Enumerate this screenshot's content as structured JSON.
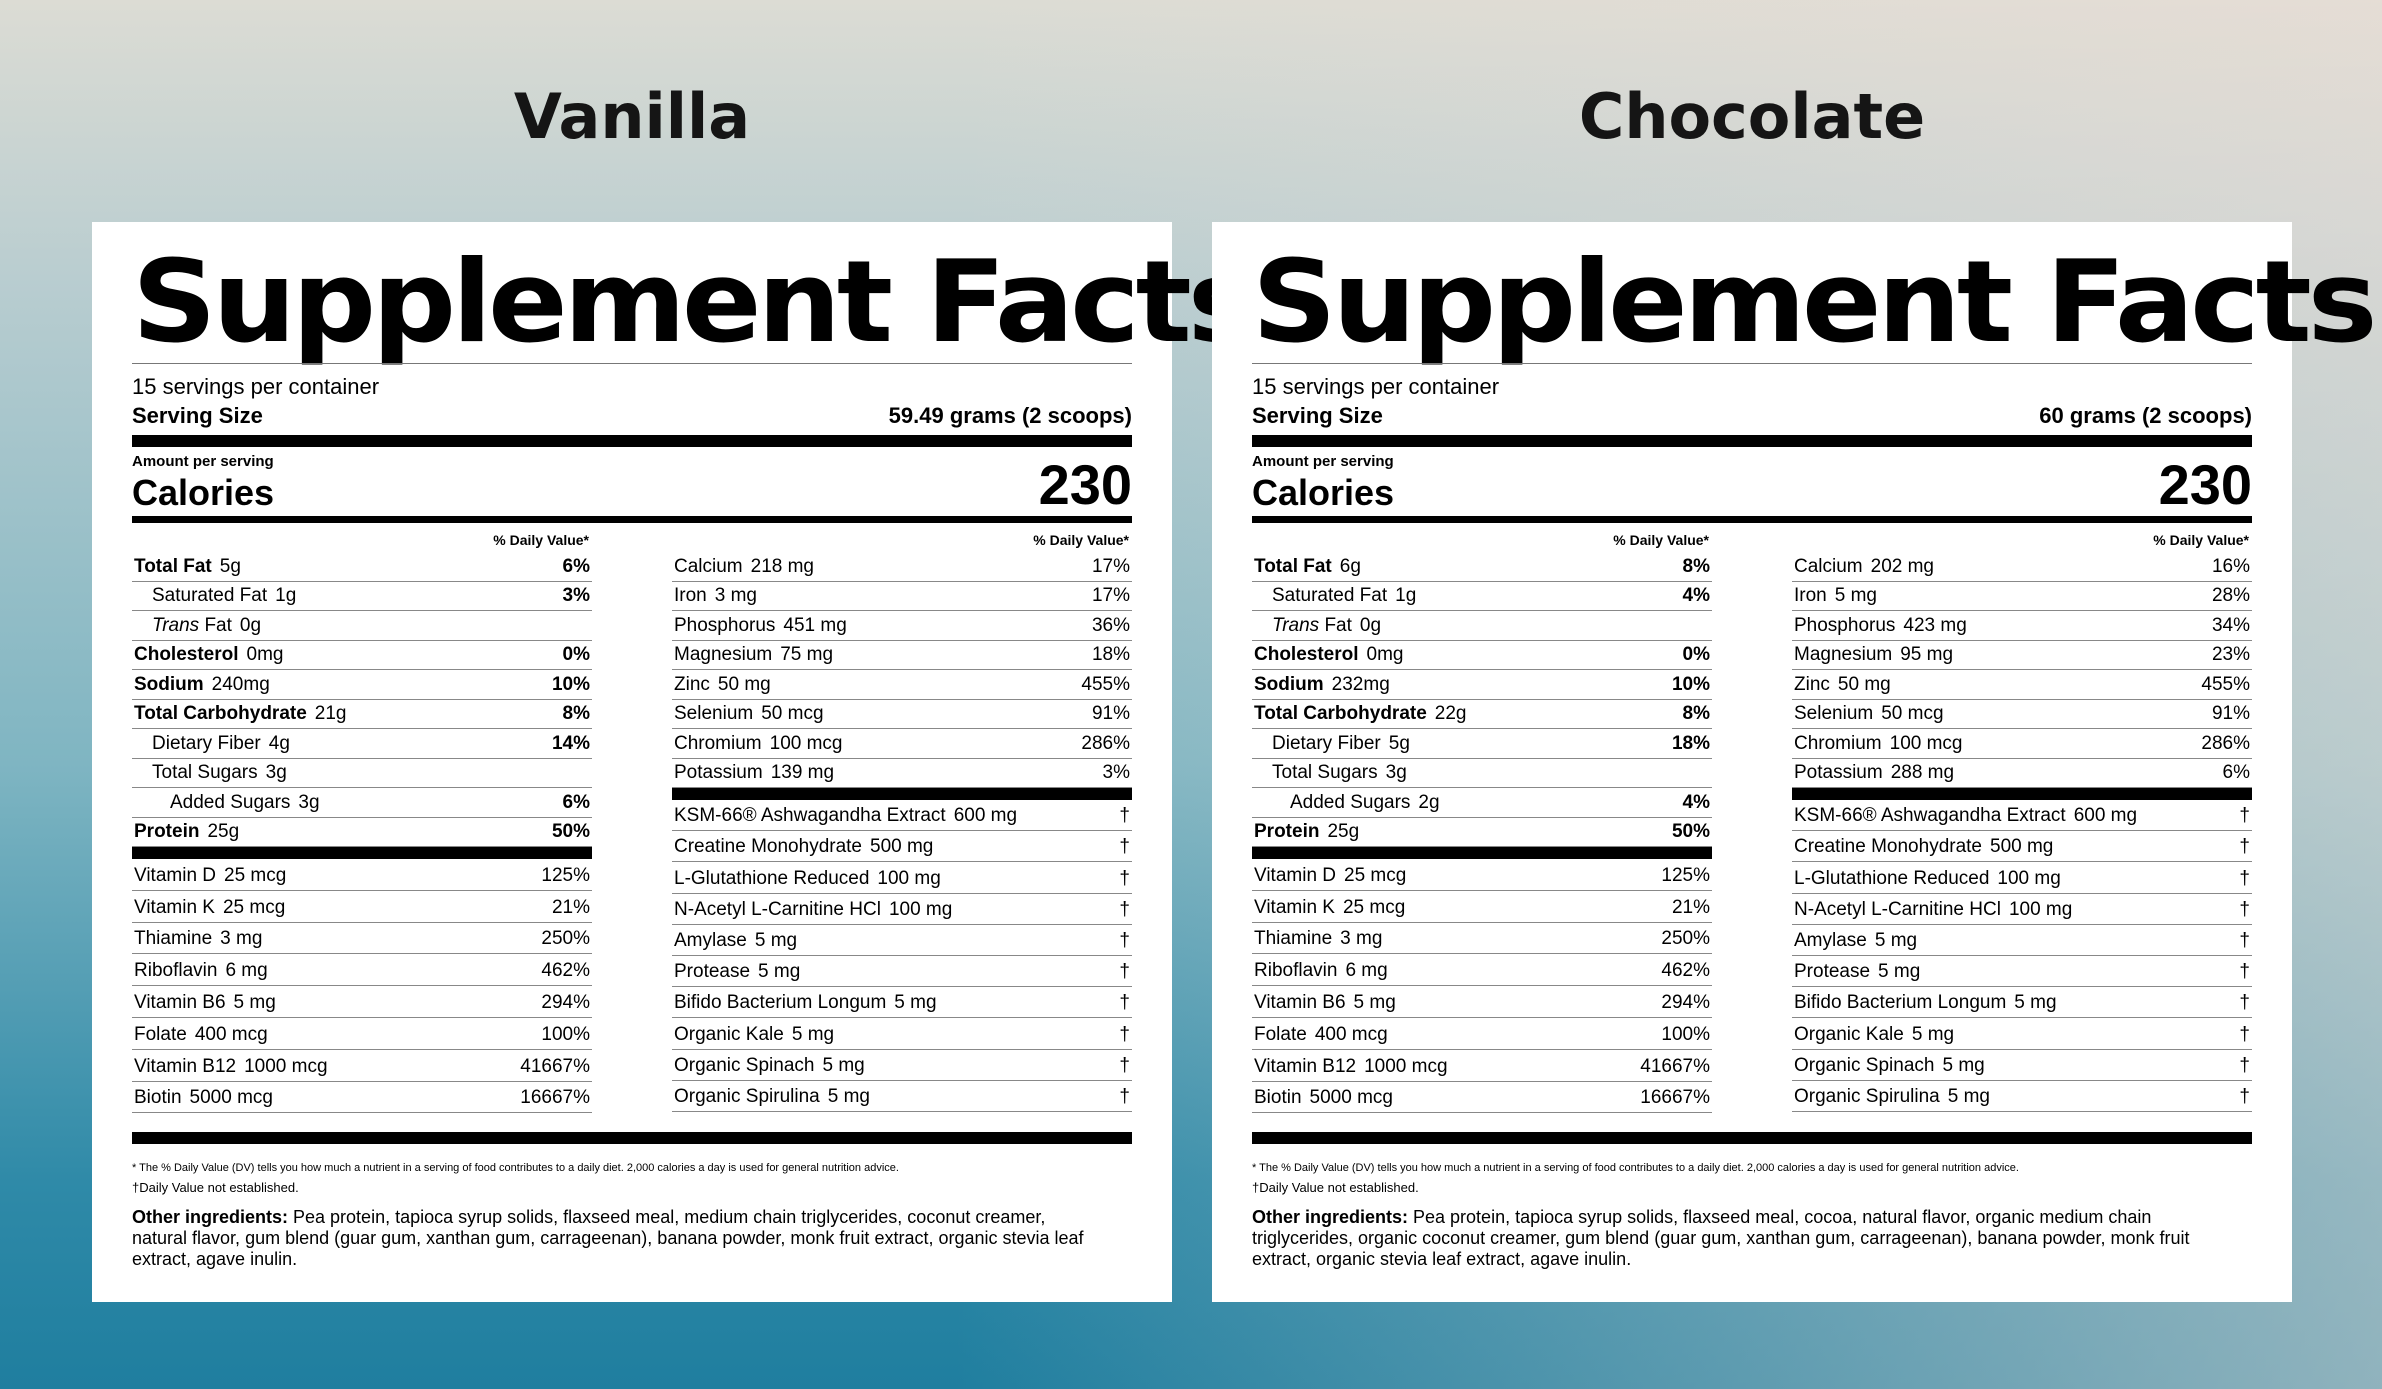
{
  "panels": [
    {
      "flavor": "Vanilla",
      "title": "Supplement Facts",
      "servings": "15 servings per container",
      "serving_size_label": "Serving Size",
      "serving_size_value": "59.49 grams (2 scoops)",
      "amount_label": "Amount per serving",
      "calories_label": "Calories",
      "calories_value": "230",
      "dv_header": "% Daily Value*",
      "macros": [
        {
          "name": "Total Fat",
          "amount": "5g",
          "dv": "6%",
          "bold": true,
          "indent": 0
        },
        {
          "name": "Saturated Fat",
          "amount": "1g",
          "dv": "3%",
          "bold": false,
          "indent": 1
        },
        {
          "name": "Trans Fat",
          "amount": "0g",
          "dv": "",
          "bold": false,
          "indent": 1,
          "italic": true
        },
        {
          "name": "Cholesterol",
          "amount": "0mg",
          "dv": "0%",
          "bold": true,
          "indent": 0
        },
        {
          "name": "Sodium",
          "amount": "240mg",
          "dv": "10%",
          "bold": true,
          "indent": 0
        },
        {
          "name": "Total Carbohydrate",
          "amount": "21g",
          "dv": "8%",
          "bold": true,
          "indent": 0
        },
        {
          "name": "Dietary Fiber",
          "amount": "4g",
          "dv": "14%",
          "bold": false,
          "indent": 1
        },
        {
          "name": "Total Sugars",
          "amount": "3g",
          "dv": "",
          "bold": false,
          "indent": 1
        },
        {
          "name": "Added Sugars",
          "amount": "3g",
          "dv": "6%",
          "bold": false,
          "indent": 2
        },
        {
          "name": "Protein",
          "amount": "25g",
          "dv": "50%",
          "bold": true,
          "indent": 0
        }
      ],
      "vitamins": [
        {
          "name": "Vitamin D",
          "amount": "25 mcg",
          "dv": "125%"
        },
        {
          "name": "Vitamin K",
          "amount": "25 mcg",
          "dv": "21%"
        },
        {
          "name": "Thiamine",
          "amount": "3 mg",
          "dv": "250%"
        },
        {
          "name": "Riboflavin",
          "amount": "6 mg",
          "dv": "462%"
        },
        {
          "name": "Vitamin B6",
          "amount": "5 mg",
          "dv": "294%"
        },
        {
          "name": "Folate",
          "amount": "400 mcg",
          "dv": "100%"
        },
        {
          "name": "Vitamin B12",
          "amount": "1000 mcg",
          "dv": "41667%"
        },
        {
          "name": "Biotin",
          "amount": "5000 mcg",
          "dv": "16667%"
        }
      ],
      "minerals": [
        {
          "name": "Calcium",
          "amount": "218 mg",
          "dv": "17%"
        },
        {
          "name": "Iron",
          "amount": "3 mg",
          "dv": "17%"
        },
        {
          "name": "Phosphorus",
          "amount": "451 mg",
          "dv": "36%"
        },
        {
          "name": "Magnesium",
          "amount": "75 mg",
          "dv": "18%"
        },
        {
          "name": "Zinc",
          "amount": "50 mg",
          "dv": "455%"
        },
        {
          "name": "Selenium",
          "amount": "50 mcg",
          "dv": "91%"
        },
        {
          "name": "Chromium",
          "amount": "100 mcg",
          "dv": "286%"
        },
        {
          "name": "Potassium",
          "amount": "139 mg",
          "dv": "3%"
        }
      ],
      "others": [
        {
          "name": "KSM-66® Ashwagandha Extract",
          "amount": "600 mg",
          "dv": "†"
        },
        {
          "name": "Creatine Monohydrate",
          "amount": "500 mg",
          "dv": "†"
        },
        {
          "name": "L-Glutathione Reduced",
          "amount": "100 mg",
          "dv": "†"
        },
        {
          "name": "N-Acetyl L-Carnitine HCl",
          "amount": "100 mg",
          "dv": "†"
        },
        {
          "name": "Amylase",
          "amount": "5 mg",
          "dv": "†"
        },
        {
          "name": "Protease",
          "amount": "5 mg",
          "dv": "†"
        },
        {
          "name": "Bifido Bacterium Longum",
          "amount": "5 mg",
          "dv": "†"
        },
        {
          "name": "Organic Kale",
          "amount": "5 mg",
          "dv": "†"
        },
        {
          "name": "Organic Spinach",
          "amount": "5 mg",
          "dv": "†"
        },
        {
          "name": "Organic Spirulina",
          "amount": "5 mg",
          "dv": "†"
        }
      ],
      "footnote_dv": "* The % Daily Value (DV) tells you how much a nutrient in a serving of food contributes to a daily diet. 2,000 calories a day is used for general nutrition advice.",
      "footnote_dagger": "†Daily Value not established.",
      "ingredients_label": "Other ingredients:",
      "ingredients_text": " Pea protein, tapioca syrup solids, flaxseed meal, medium chain triglycerides, coconut creamer, natural flavor, gum blend (guar gum, xanthan gum, carrageenan), banana powder, monk fruit extract, organic stevia leaf extract, agave inulin."
    },
    {
      "flavor": "Chocolate",
      "title": "Supplement Facts",
      "servings": "15 servings per container",
      "serving_size_label": "Serving Size",
      "serving_size_value": "60 grams (2 scoops)",
      "amount_label": "Amount per serving",
      "calories_label": "Calories",
      "calories_value": "230",
      "dv_header": "% Daily Value*",
      "macros": [
        {
          "name": "Total Fat",
          "amount": "6g",
          "dv": "8%",
          "bold": true,
          "indent": 0
        },
        {
          "name": "Saturated Fat",
          "amount": "1g",
          "dv": "4%",
          "bold": false,
          "indent": 1
        },
        {
          "name": "Trans Fat",
          "amount": "0g",
          "dv": "",
          "bold": false,
          "indent": 1,
          "italic": true
        },
        {
          "name": "Cholesterol",
          "amount": "0mg",
          "dv": "0%",
          "bold": true,
          "indent": 0
        },
        {
          "name": "Sodium",
          "amount": "232mg",
          "dv": "10%",
          "bold": true,
          "indent": 0
        },
        {
          "name": "Total Carbohydrate",
          "amount": "22g",
          "dv": "8%",
          "bold": true,
          "indent": 0
        },
        {
          "name": "Dietary Fiber",
          "amount": "5g",
          "dv": "18%",
          "bold": false,
          "indent": 1
        },
        {
          "name": "Total Sugars",
          "amount": "3g",
          "dv": "",
          "bold": false,
          "indent": 1
        },
        {
          "name": "Added Sugars",
          "amount": "2g",
          "dv": "4%",
          "bold": false,
          "indent": 2
        },
        {
          "name": "Protein",
          "amount": "25g",
          "dv": "50%",
          "bold": true,
          "indent": 0
        }
      ],
      "vitamins": [
        {
          "name": "Vitamin D",
          "amount": "25 mcg",
          "dv": "125%"
        },
        {
          "name": "Vitamin K",
          "amount": "25 mcg",
          "dv": "21%"
        },
        {
          "name": "Thiamine",
          "amount": "3 mg",
          "dv": "250%"
        },
        {
          "name": "Riboflavin",
          "amount": "6 mg",
          "dv": "462%"
        },
        {
          "name": "Vitamin B6",
          "amount": "5 mg",
          "dv": "294%"
        },
        {
          "name": "Folate",
          "amount": "400 mcg",
          "dv": "100%"
        },
        {
          "name": "Vitamin B12",
          "amount": "1000 mcg",
          "dv": "41667%"
        },
        {
          "name": "Biotin",
          "amount": "5000 mcg",
          "dv": "16667%"
        }
      ],
      "minerals": [
        {
          "name": "Calcium",
          "amount": "202 mg",
          "dv": "16%"
        },
        {
          "name": "Iron",
          "amount": "5 mg",
          "dv": "28%"
        },
        {
          "name": "Phosphorus",
          "amount": "423 mg",
          "dv": "34%"
        },
        {
          "name": "Magnesium",
          "amount": "95 mg",
          "dv": "23%"
        },
        {
          "name": "Zinc",
          "amount": "50 mg",
          "dv": "455%"
        },
        {
          "name": "Selenium",
          "amount": "50 mcg",
          "dv": "91%"
        },
        {
          "name": "Chromium",
          "amount": "100 mcg",
          "dv": "286%"
        },
        {
          "name": "Potassium",
          "amount": "288 mg",
          "dv": "6%"
        }
      ],
      "others": [
        {
          "name": "KSM-66® Ashwagandha Extract",
          "amount": "600 mg",
          "dv": "†"
        },
        {
          "name": "Creatine Monohydrate",
          "amount": "500 mg",
          "dv": "†"
        },
        {
          "name": "L-Glutathione Reduced",
          "amount": "100 mg",
          "dv": "†"
        },
        {
          "name": "N-Acetyl L-Carnitine HCl",
          "amount": "100 mg",
          "dv": "†"
        },
        {
          "name": "Amylase",
          "amount": "5 mg",
          "dv": "†"
        },
        {
          "name": "Protease",
          "amount": "5 mg",
          "dv": "†"
        },
        {
          "name": "Bifido Bacterium Longum",
          "amount": "5 mg",
          "dv": "†"
        },
        {
          "name": "Organic Kale",
          "amount": "5 mg",
          "dv": "†"
        },
        {
          "name": "Organic Spinach",
          "amount": "5 mg",
          "dv": "†"
        },
        {
          "name": "Organic Spirulina",
          "amount": "5 mg",
          "dv": "†"
        }
      ],
      "footnote_dv": "* The % Daily Value (DV) tells you how much a nutrient in a serving of food contributes to a daily diet. 2,000 calories a day is used for general nutrition advice.",
      "footnote_dagger": "†Daily Value not established.",
      "ingredients_label": "Other ingredients:",
      "ingredients_text": " Pea protein, tapioca syrup solids, flaxseed meal, cocoa, natural flavor, organic medium chain triglycerides, organic coconut creamer, gum blend (guar gum, xanthan gum, carrageenan), banana powder, monk fruit extract, organic stevia leaf extract, agave inulin."
    }
  ]
}
